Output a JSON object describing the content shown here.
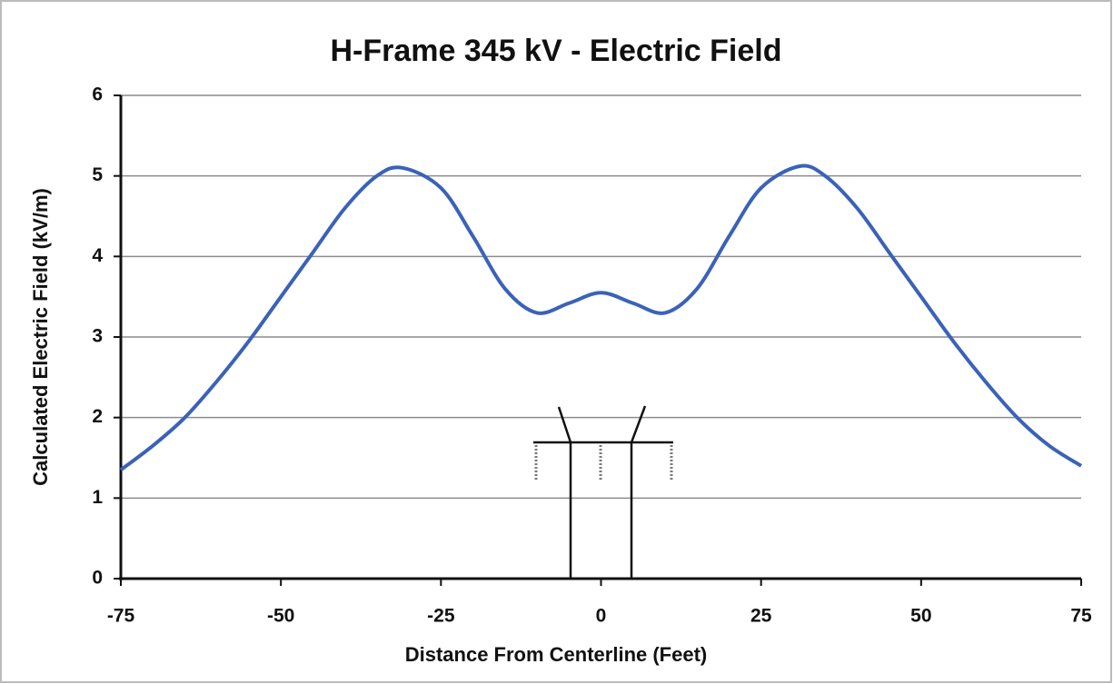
{
  "chart_data": {
    "type": "line",
    "title": "H-Frame 345 kV - Electric Field",
    "xlabel": "Distance From Centerline (Feet)",
    "ylabel": "Calculated Electric Field (kV/m)",
    "x": [
      -75,
      -70,
      -65,
      -60,
      -55,
      -50,
      -45,
      -40,
      -35,
      -31,
      -25,
      -20,
      -15,
      -10,
      -5,
      0,
      5,
      10,
      15,
      20,
      25,
      31,
      35,
      40,
      45,
      50,
      55,
      60,
      65,
      70,
      75
    ],
    "series": [
      {
        "name": "Electric Field",
        "color": "#3a62b8",
        "values": [
          1.35,
          1.65,
          2.0,
          2.45,
          2.95,
          3.5,
          4.05,
          4.6,
          5.0,
          5.1,
          4.85,
          4.25,
          3.6,
          3.3,
          3.42,
          3.55,
          3.42,
          3.3,
          3.6,
          4.25,
          4.85,
          5.12,
          5.0,
          4.6,
          4.05,
          3.5,
          2.95,
          2.45,
          2.0,
          1.65,
          1.4
        ]
      }
    ],
    "xlim": [
      -75,
      75
    ],
    "xticks": [
      -75,
      -50,
      -25,
      0,
      25,
      50,
      75
    ],
    "ylim": [
      0,
      6
    ],
    "yticks": [
      0,
      1,
      2,
      3,
      4,
      5,
      6
    ],
    "grid": true
  }
}
